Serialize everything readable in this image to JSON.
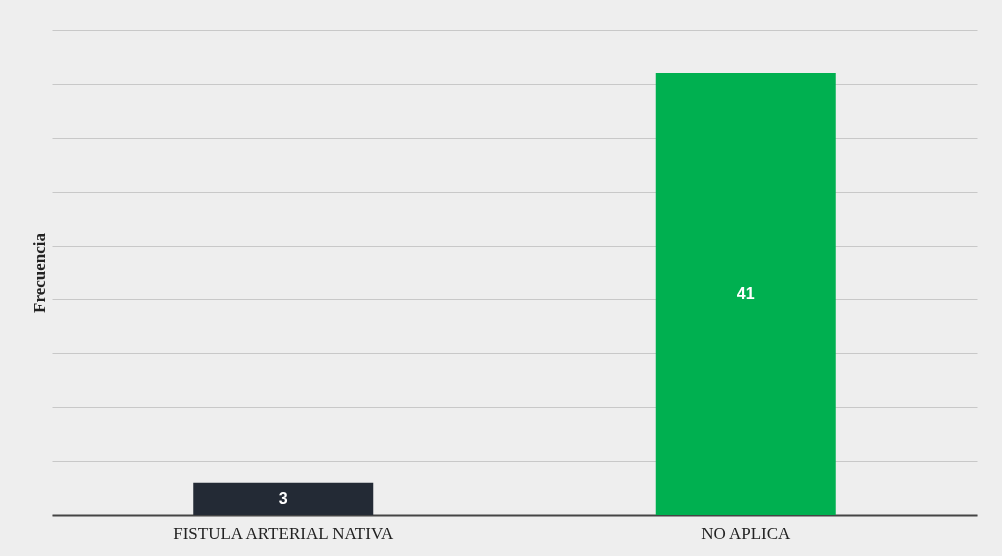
{
  "chart_data": {
    "type": "bar",
    "ylabel": "Frecuencia",
    "categories": [
      "FISTULA ARTERIAL NATIVA",
      "NO APLICA"
    ],
    "values": [
      3,
      41
    ],
    "colors": [
      "#232a35",
      "#00b050"
    ],
    "grid": "y",
    "data_labels": true,
    "tick_labels": "x"
  }
}
